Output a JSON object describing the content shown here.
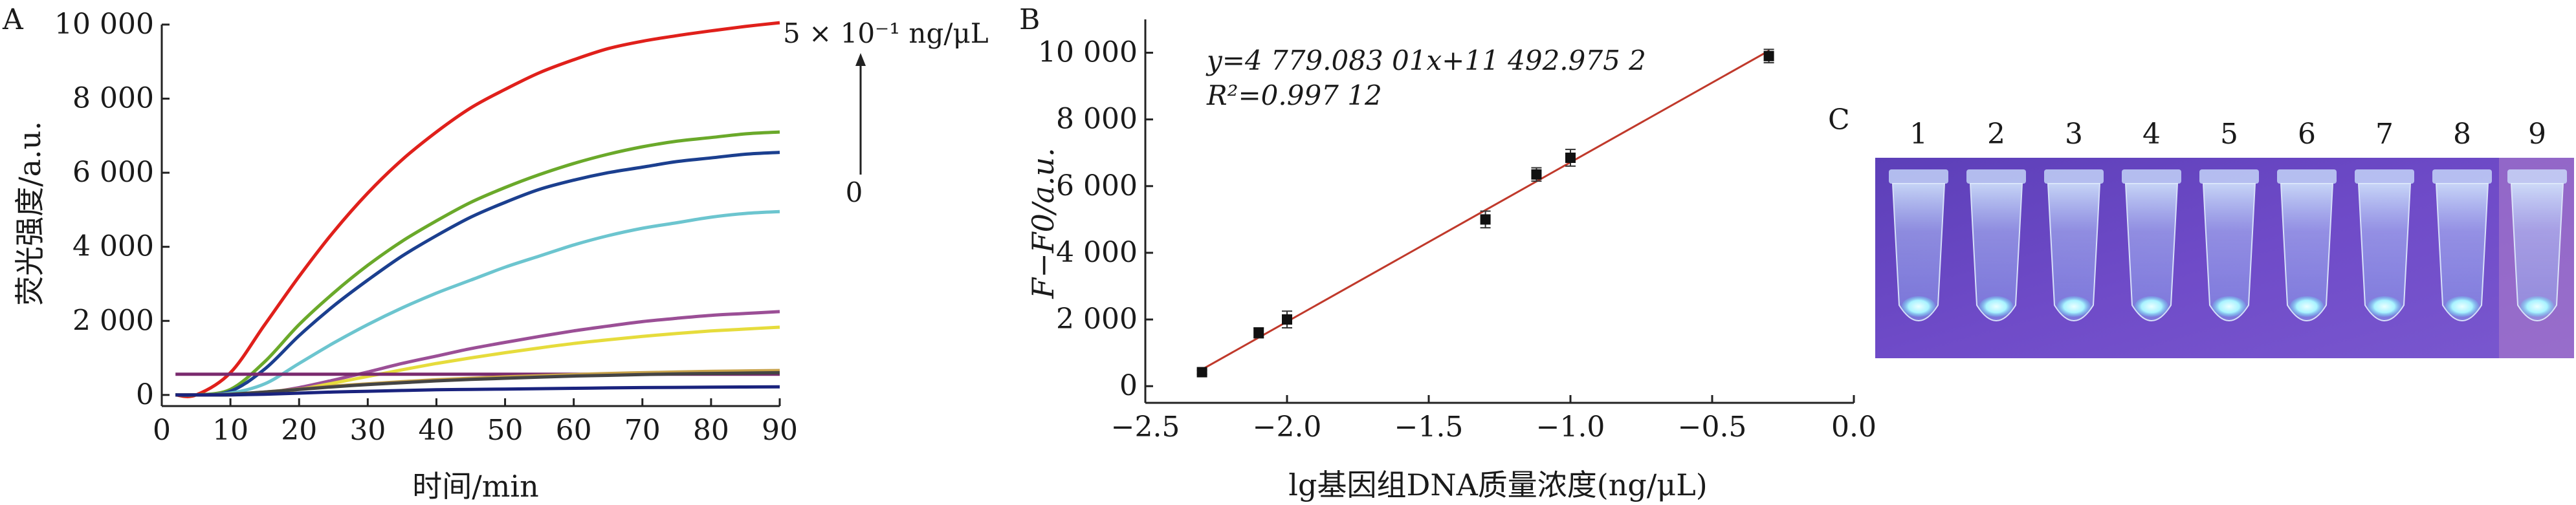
{
  "panels": {
    "a": "A",
    "b": "B",
    "c": "C"
  },
  "chart_data": [
    {
      "type": "line",
      "panel": "A",
      "title": "",
      "xlabel": "时间/min",
      "ylabel": "荧光强度/a.u.",
      "xlim": [
        0,
        90
      ],
      "ylim": [
        -300,
        10000
      ],
      "x_ticks": [
        0,
        10,
        20,
        30,
        40,
        50,
        60,
        70,
        80,
        90
      ],
      "x_tick_labels": [
        "0",
        "10",
        "20",
        "30",
        "40",
        "50",
        "60",
        "70",
        "80",
        "90"
      ],
      "y_ticks": [
        0,
        2000,
        4000,
        6000,
        8000,
        10000
      ],
      "y_tick_labels": [
        "0",
        "2 000",
        "4 000",
        "6 000",
        "8 000",
        "10 000"
      ],
      "annotation": {
        "top": "5 × 10⁻¹ ng/μL",
        "bottom": "0"
      },
      "x": [
        2,
        5,
        10,
        15,
        20,
        25,
        30,
        35,
        40,
        45,
        50,
        55,
        60,
        65,
        70,
        75,
        80,
        85,
        90
      ],
      "series": [
        {
          "color": "#e0201b",
          "values": [
            0,
            0,
            600,
            1900,
            3200,
            4400,
            5450,
            6350,
            7100,
            7750,
            8250,
            8700,
            9050,
            9350,
            9550,
            9700,
            9830,
            9950,
            10050
          ]
        },
        {
          "color": "#6aa92a",
          "values": [
            0,
            0,
            150,
            900,
            1900,
            2750,
            3500,
            4150,
            4700,
            5200,
            5600,
            5950,
            6250,
            6500,
            6700,
            6850,
            6950,
            7050,
            7100
          ]
        },
        {
          "color": "#1b3f8f",
          "values": [
            0,
            0,
            100,
            700,
            1600,
            2400,
            3100,
            3750,
            4300,
            4800,
            5200,
            5550,
            5800,
            6000,
            6150,
            6300,
            6400,
            6500,
            6550
          ]
        },
        {
          "color": "#6cc5cf",
          "values": [
            0,
            0,
            50,
            300,
            850,
            1400,
            1900,
            2350,
            2750,
            3100,
            3450,
            3750,
            4050,
            4300,
            4500,
            4650,
            4800,
            4900,
            4950
          ]
        },
        {
          "color": "#9b4f96",
          "values": [
            0,
            0,
            0,
            60,
            200,
            400,
            620,
            850,
            1050,
            1250,
            1420,
            1580,
            1730,
            1860,
            1980,
            2070,
            2150,
            2200,
            2250
          ]
        },
        {
          "color": "#e6dc3c",
          "values": [
            0,
            0,
            0,
            40,
            150,
            320,
            500,
            680,
            850,
            1000,
            1140,
            1270,
            1390,
            1490,
            1580,
            1660,
            1730,
            1780,
            1830
          ]
        },
        {
          "color": "#7a2a6e",
          "values": [
            560,
            560,
            560,
            560,
            560,
            560,
            560,
            560,
            560,
            560,
            560,
            560,
            560,
            560,
            560,
            560,
            560,
            560,
            560
          ]
        },
        {
          "color": "#c8a24a",
          "values": [
            0,
            0,
            20,
            80,
            160,
            240,
            300,
            360,
            410,
            450,
            490,
            520,
            550,
            580,
            600,
            620,
            640,
            650,
            660
          ]
        },
        {
          "color": "#444444",
          "values": [
            0,
            0,
            20,
            80,
            150,
            220,
            280,
            330,
            380,
            420,
            450,
            480,
            510,
            530,
            550,
            570,
            580,
            590,
            600
          ]
        },
        {
          "color": "#1a237e",
          "values": [
            0,
            0,
            0,
            20,
            50,
            80,
            100,
            120,
            140,
            150,
            160,
            170,
            180,
            190,
            200,
            205,
            210,
            215,
            220
          ]
        }
      ]
    },
    {
      "type": "scatter",
      "panel": "B",
      "title": "",
      "xlabel": "lg基因组DNA质量浓度(ng/μL)",
      "ylabel": "F−F0/a.u.",
      "xlim": [
        -2.5,
        0.0
      ],
      "ylim": [
        -500,
        11000
      ],
      "x_ticks": [
        -2.5,
        -2.0,
        -1.5,
        -1.0,
        -0.5,
        0.0
      ],
      "x_tick_labels": [
        "−2.5",
        "−2.0",
        "−1.5",
        "−1.0",
        "−0.5",
        "0.0"
      ],
      "y_ticks": [
        0,
        2000,
        4000,
        6000,
        8000,
        10000
      ],
      "y_tick_labels": [
        "0",
        "2 000",
        "4 000",
        "6 000",
        "8 000",
        "10 000"
      ],
      "equation": "y=4 779.083 01x+11 492.975 2",
      "r_squared": "R²=0.997 12",
      "fit": {
        "slope": 4779.08301,
        "intercept": 11492.9752,
        "x_range": [
          -2.31,
          -0.3
        ],
        "color": "#c0392b"
      },
      "points": [
        {
          "x": -2.3,
          "y": 420,
          "err": 60
        },
        {
          "x": -2.1,
          "y": 1600,
          "err": 150
        },
        {
          "x": -2.0,
          "y": 2000,
          "err": 250
        },
        {
          "x": -1.3,
          "y": 5000,
          "err": 250
        },
        {
          "x": -1.12,
          "y": 6350,
          "err": 200
        },
        {
          "x": -1.0,
          "y": 6850,
          "err": 250
        },
        {
          "x": -0.3,
          "y": 9900,
          "err": 200
        }
      ]
    }
  ],
  "gel": {
    "lanes": [
      "1",
      "2",
      "3",
      "4",
      "5",
      "6",
      "7",
      "8",
      "9"
    ],
    "background": "#6a4ac4",
    "tube_glow": "#c9ecff"
  }
}
